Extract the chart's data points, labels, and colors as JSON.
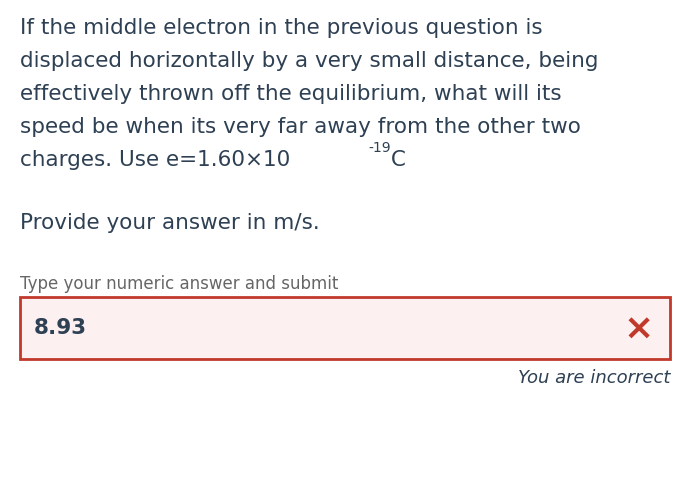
{
  "background_color": "#ffffff",
  "question_lines": [
    "If the middle electron in the previous question is",
    "displaced horizontally by a very small distance, being",
    "effectively thrown off the equilibrium, what will its",
    "speed be when its very far away from the other two",
    "charges. Use e=1.60×10"
  ],
  "superscript": "-19",
  "after_super": " C",
  "provide_text": "Provide your answer in m/s.",
  "type_text": "Type your numeric answer and submit",
  "answer_value": "8.93",
  "incorrect_text": "You are incorrect",
  "text_color": "#2e4053",
  "incorrect_color": "#2e4053",
  "input_bg": "#fdf0f0",
  "input_border": "#c0392b",
  "x_color": "#c0392b",
  "label_color": "#666666",
  "q_fontsize": 15.5,
  "provide_fontsize": 15.5,
  "type_fontsize": 12.0,
  "answer_fontsize": 15.5,
  "incorrect_fontsize": 13.0
}
